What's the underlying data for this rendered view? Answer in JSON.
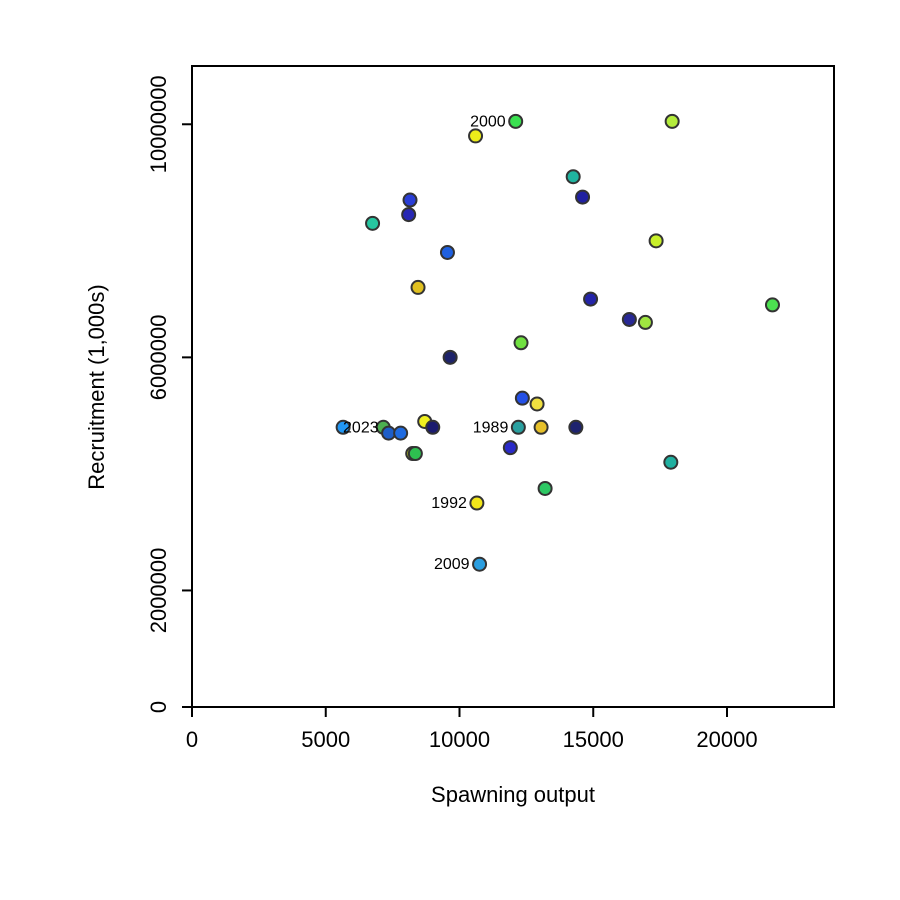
{
  "chart_data": {
    "type": "scatter",
    "title": "",
    "xlabel": "Spawning output",
    "ylabel": "Recruitment (1,000s)",
    "xlim": [
      0,
      24000
    ],
    "ylim": [
      0,
      11000000
    ],
    "xticks": [
      0,
      5000,
      10000,
      15000,
      20000
    ],
    "xtick_labels": [
      "0",
      "5000",
      "10000",
      "15000",
      "20000"
    ],
    "yticks": [
      0,
      2000000,
      6000000,
      10000000
    ],
    "ytick_labels": [
      "0",
      "2000000",
      "6000000",
      "10000000"
    ],
    "grid": false,
    "points": [
      {
        "x": 5650,
        "y": 4800000,
        "color": "#2196f3"
      },
      {
        "x": 6750,
        "y": 8300000,
        "color": "#26c6a0"
      },
      {
        "x": 7150,
        "y": 4800000,
        "color": "#4caf50"
      },
      {
        "x": 7350,
        "y": 4700000,
        "color": "#1e5ec8"
      },
      {
        "x": 7800,
        "y": 4700000,
        "color": "#1e6ae0"
      },
      {
        "x": 8100,
        "y": 8450000,
        "color": "#2828b4"
      },
      {
        "x": 8150,
        "y": 8700000,
        "color": "#2a3ed6"
      },
      {
        "x": 8250,
        "y": 4350000,
        "color": "#a0b020"
      },
      {
        "x": 8350,
        "y": 4350000,
        "color": "#2ec050"
      },
      {
        "x": 8450,
        "y": 7200000,
        "color": "#e0c020"
      },
      {
        "x": 8700,
        "y": 4900000,
        "color": "#f0f020"
      },
      {
        "x": 9000,
        "y": 4800000,
        "color": "#1a1a6e"
      },
      {
        "x": 9550,
        "y": 7800000,
        "color": "#1f60e0"
      },
      {
        "x": 9650,
        "y": 6000000,
        "color": "#1e236a"
      },
      {
        "x": 10600,
        "y": 9800000,
        "color": "#ecec1a"
      },
      {
        "x": 10650,
        "y": 3500000,
        "color": "#f2e61a"
      },
      {
        "x": 10750,
        "y": 2450000,
        "color": "#2a9ee0"
      },
      {
        "x": 11900,
        "y": 4450000,
        "color": "#2a2ac8"
      },
      {
        "x": 12100,
        "y": 10050000,
        "color": "#3ae050"
      },
      {
        "x": 12200,
        "y": 4800000,
        "color": "#2aa0a0"
      },
      {
        "x": 12300,
        "y": 6250000,
        "color": "#70e040"
      },
      {
        "x": 12350,
        "y": 5300000,
        "color": "#2450e6"
      },
      {
        "x": 12900,
        "y": 5200000,
        "color": "#f0e040"
      },
      {
        "x": 13050,
        "y": 4800000,
        "color": "#e6c02a"
      },
      {
        "x": 13200,
        "y": 3750000,
        "color": "#2ec864"
      },
      {
        "x": 14250,
        "y": 9100000,
        "color": "#20b4a0"
      },
      {
        "x": 14350,
        "y": 4800000,
        "color": "#1e236e"
      },
      {
        "x": 14600,
        "y": 8750000,
        "color": "#2020a0"
      },
      {
        "x": 14900,
        "y": 7000000,
        "color": "#2424a8"
      },
      {
        "x": 16350,
        "y": 6650000,
        "color": "#282894"
      },
      {
        "x": 16950,
        "y": 6600000,
        "color": "#a0e640"
      },
      {
        "x": 17350,
        "y": 8000000,
        "color": "#c8f02a"
      },
      {
        "x": 17900,
        "y": 4200000,
        "color": "#20b0a0"
      },
      {
        "x": 17950,
        "y": 10050000,
        "color": "#b4ec3c"
      },
      {
        "x": 21700,
        "y": 6900000,
        "color": "#4ce050"
      }
    ],
    "annotations": [
      {
        "label": "2000",
        "x": 12100,
        "y": 10050000
      },
      {
        "label": "2023",
        "x": 7350,
        "y": 4800000
      },
      {
        "label": "1989",
        "x": 12200,
        "y": 4800000
      },
      {
        "label": "1992",
        "x": 10650,
        "y": 3500000
      },
      {
        "label": "2009",
        "x": 10750,
        "y": 2450000
      }
    ]
  }
}
